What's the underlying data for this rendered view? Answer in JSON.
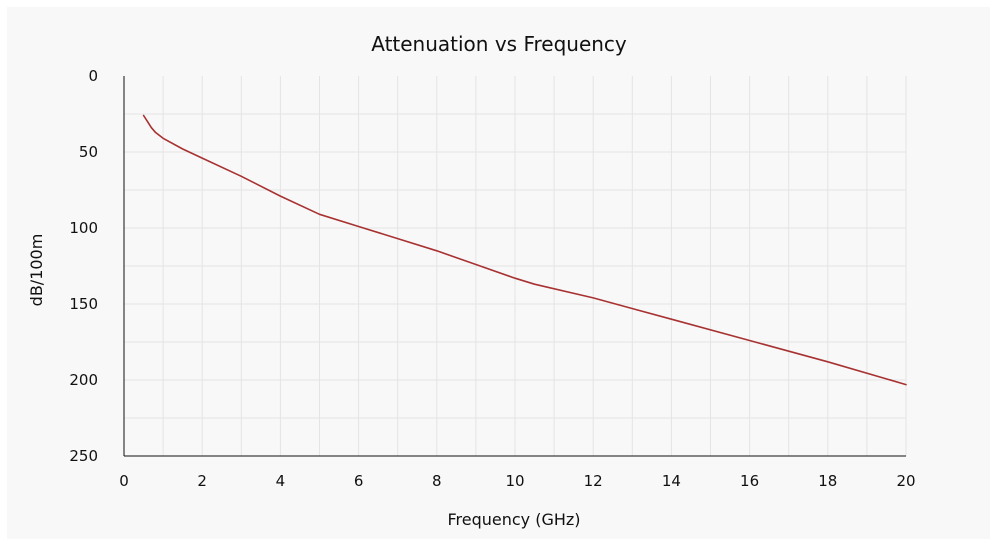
{
  "chart_data": {
    "type": "line",
    "title": "Attenuation vs Frequency",
    "xlabel": "Frequency (GHz)",
    "ylabel": "dB/100m",
    "xlim": [
      0,
      20
    ],
    "ylim": [
      0,
      250
    ],
    "y_inverted": true,
    "x_ticks": [
      "0",
      "2",
      "4",
      "6",
      "8",
      "10",
      "12",
      "14",
      "16",
      "18",
      "20"
    ],
    "y_ticks": [
      "0",
      "50",
      "100",
      "150",
      "200",
      "250"
    ],
    "grid": true,
    "series": [
      {
        "color": "#a83232",
        "x": [
          0.5,
          0.6,
          0.7,
          0.8,
          1.0,
          1.5,
          2.0,
          3.0,
          4.0,
          5.0,
          6.0,
          7.0,
          8.0,
          9.0,
          10.0,
          10.5,
          12.0,
          14.0,
          16.0,
          18.0,
          20.0
        ],
        "y": [
          26,
          30,
          34,
          37,
          41,
          48,
          54,
          66,
          79,
          91,
          99,
          107,
          115,
          124,
          133,
          137,
          146,
          160,
          174,
          188,
          203
        ]
      }
    ]
  }
}
